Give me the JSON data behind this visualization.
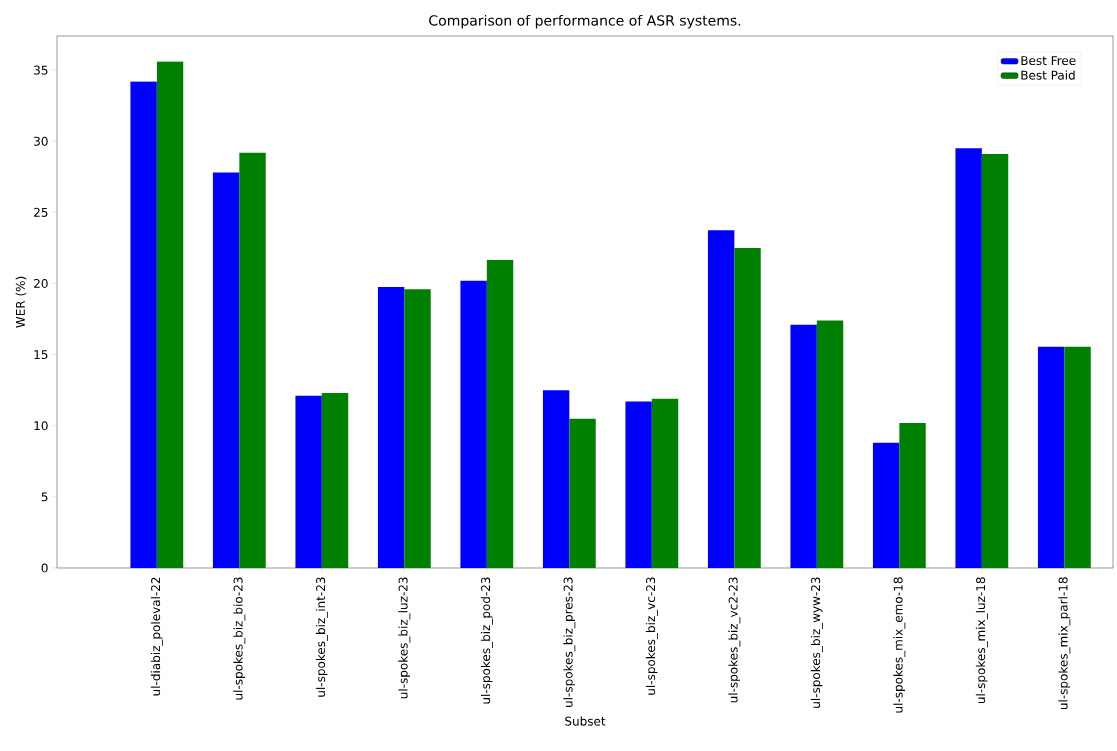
{
  "chart_data": {
    "type": "bar",
    "title": "Comparison of performance of ASR systems.",
    "xlabel": "Subset",
    "ylabel": "WER (%)",
    "categories": [
      "ul-diabiz_poleval-22",
      "ul-spokes_biz_bio-23",
      "ul-spokes_biz_int-23",
      "ul-spokes_biz_luz-23",
      "ul-spokes_biz_pod-23",
      "ul-spokes_biz_pres-23",
      "ul-spokes_biz_vc-23",
      "ul-spokes_biz_vc2-23",
      "ul-spokes_biz_wyw-23",
      "ul-spokes_mix_emo-18",
      "ul-spokes_mix_luz-18",
      "ul-spokes_mix_parl-18"
    ],
    "series": [
      {
        "name": "Best Free",
        "color": "#0000ff",
        "values": [
          34.2,
          27.8,
          12.1,
          19.75,
          20.2,
          12.5,
          11.7,
          23.75,
          17.1,
          8.8,
          29.5,
          15.55
        ]
      },
      {
        "name": "Best Paid",
        "color": "#008000",
        "values": [
          35.6,
          29.2,
          12.3,
          19.6,
          21.65,
          10.5,
          11.9,
          22.5,
          17.4,
          10.2,
          29.1,
          15.55
        ]
      }
    ],
    "ylim": [
      0,
      37.4
    ],
    "yticks": [
      0,
      5,
      10,
      15,
      20,
      25,
      30,
      35
    ],
    "grid": false,
    "legend": "top right"
  }
}
